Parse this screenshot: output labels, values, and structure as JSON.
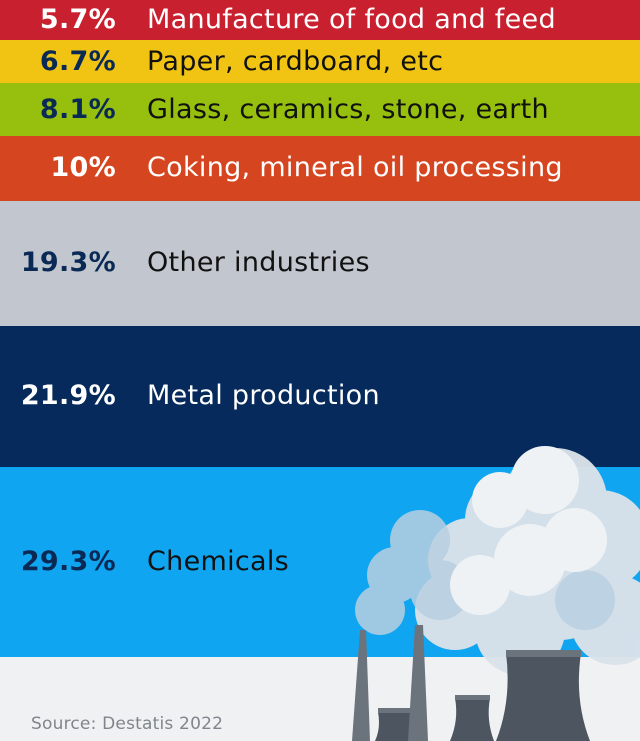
{
  "chart_data": {
    "type": "bar",
    "orientation": "stacked-bands",
    "categories": [
      "Manufacture of food and feed",
      "Paper, cardboard, etc",
      "Glass, ceramics, stone, earth",
      "Coking, mineral oil processing",
      "Other industries",
      "Metal production",
      "Chemicals"
    ],
    "values": [
      5.7,
      6.7,
      8.1,
      10,
      19.3,
      21.9,
      29.3
    ],
    "value_labels": [
      "5.7%",
      "6.7%",
      "8.1%",
      "10%",
      "19.3%",
      "21.9%",
      "29.3%"
    ],
    "colors": [
      "#c8202f",
      "#f1c313",
      "#96bf0e",
      "#d5451f",
      "#c2c7cf",
      "#062a5b",
      "#10a5f0"
    ],
    "label_colors": [
      "#ffffff",
      "#0a2a55",
      "#0a2a55",
      "#ffffff",
      "#0a2a55",
      "#ffffff",
      "#0a2a55"
    ],
    "text_colors": [
      "#ffffff",
      "#111111",
      "#111111",
      "#ffffff",
      "#111111",
      "#ffffff",
      "#111111"
    ],
    "unit": "%"
  },
  "source": "Source: Destatis 2022",
  "illustration": "industrial-chimneys-smoke-icon"
}
